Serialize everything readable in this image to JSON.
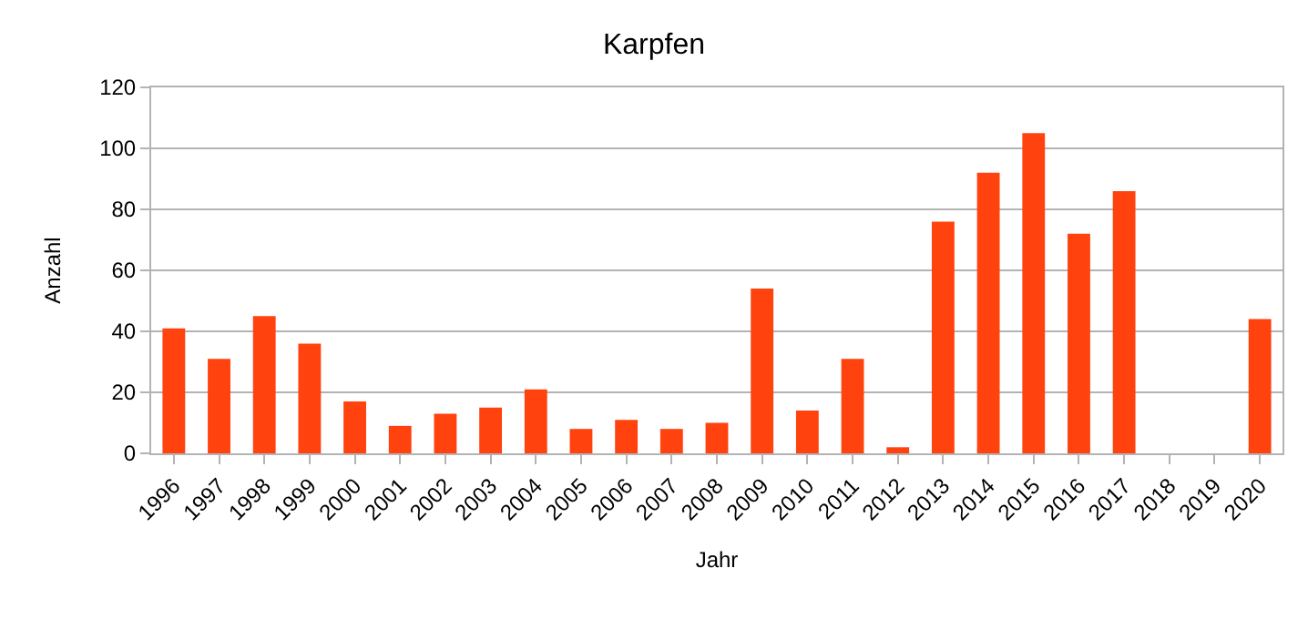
{
  "chart_data": {
    "type": "bar",
    "title": "Karpfen",
    "xlabel": "Jahr",
    "ylabel": "Anzahl",
    "categories": [
      "1996",
      "1997",
      "1998",
      "1999",
      "2000",
      "2001",
      "2002",
      "2003",
      "2004",
      "2005",
      "2006",
      "2007",
      "2008",
      "2009",
      "2010",
      "2011",
      "2012",
      "2013",
      "2014",
      "2015",
      "2016",
      "2017",
      "2018",
      "2019",
      "2020"
    ],
    "values": [
      41,
      31,
      45,
      36,
      17,
      9,
      13,
      15,
      21,
      8,
      11,
      8,
      10,
      54,
      14,
      31,
      2,
      76,
      92,
      105,
      72,
      86,
      null,
      null,
      44
    ],
    "color": "#ff420e",
    "ylim": [
      0,
      120
    ],
    "yticks": [
      0,
      20,
      40,
      60,
      80,
      100,
      120
    ],
    "grid": "y"
  }
}
